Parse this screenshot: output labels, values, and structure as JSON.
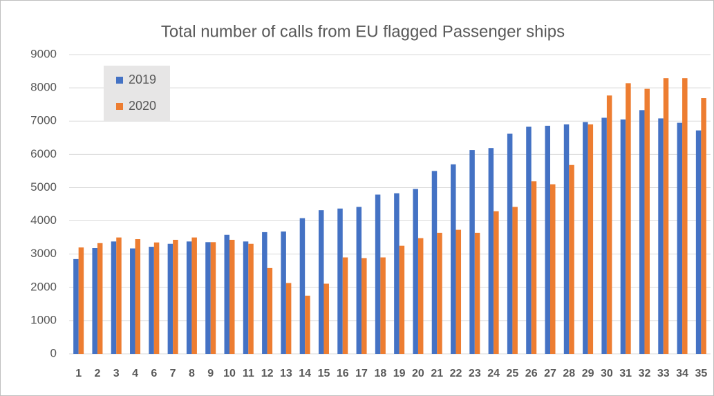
{
  "chart_data": {
    "type": "bar",
    "title": "Total number of calls from EU flagged Passenger ships",
    "categories": [
      "1",
      "2",
      "3",
      "4",
      "6",
      "7",
      "8",
      "9",
      "10",
      "11",
      "12",
      "13",
      "14",
      "15",
      "16",
      "17",
      "18",
      "19",
      "20",
      "21",
      "22",
      "23",
      "24",
      "25",
      "26",
      "27",
      "28",
      "29",
      "30",
      "31",
      "32",
      "33",
      "34",
      "35"
    ],
    "series": [
      {
        "name": "2019",
        "color": "#4472c4",
        "values": [
          2850,
          3180,
          3380,
          3170,
          3220,
          3310,
          3380,
          3360,
          3580,
          3380,
          3660,
          3680,
          4080,
          4320,
          4370,
          4420,
          4790,
          4830,
          4960,
          5500,
          5700,
          6130,
          6190,
          6620,
          6830,
          6860,
          6900,
          6970,
          7100,
          7050,
          7330,
          7080,
          6950,
          6720
        ]
      },
      {
        "name": "2020",
        "color": "#ed7d31",
        "values": [
          3200,
          3330,
          3500,
          3450,
          3350,
          3430,
          3500,
          3360,
          3430,
          3310,
          2580,
          2130,
          1750,
          2110,
          2900,
          2880,
          2900,
          3250,
          3480,
          3640,
          3730,
          3640,
          4290,
          4420,
          5190,
          5100,
          5680,
          6900,
          7770,
          8140,
          7970,
          8290,
          8290,
          7690
        ]
      }
    ],
    "ylim": [
      0,
      9000
    ],
    "yticks": [
      0,
      1000,
      2000,
      3000,
      4000,
      5000,
      6000,
      7000,
      8000,
      9000
    ],
    "grid": true,
    "legend": "top-left"
  }
}
